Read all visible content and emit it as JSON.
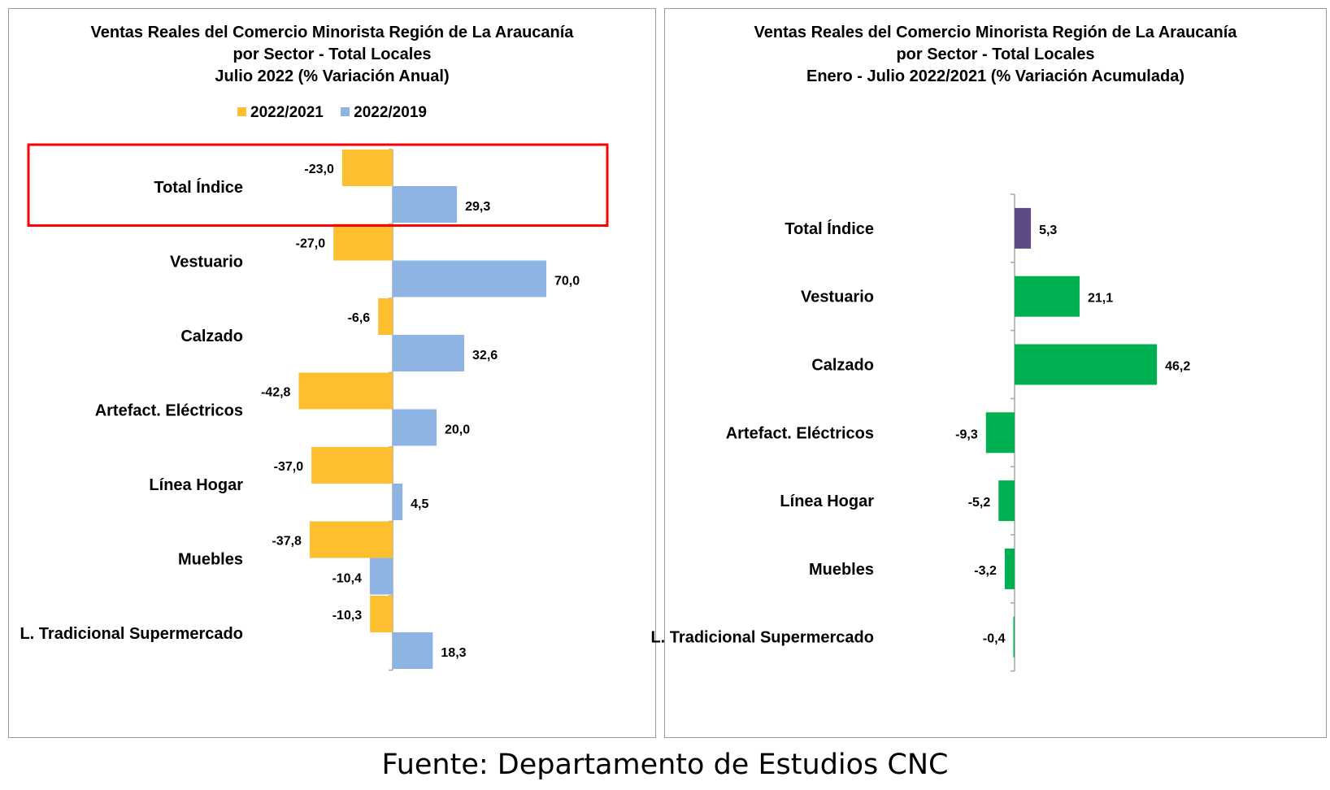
{
  "colors": {
    "series_2021": "#FDBF2D",
    "series_2019": "#8EB4E3",
    "total_index": "#5E4A85",
    "sectors": "#00B050",
    "highlight_box": "#FF0000"
  },
  "source": "Fuente: Departamento de Estudios CNC",
  "chart_data": [
    {
      "type": "bar",
      "orientation": "horizontal",
      "title_lines": [
        "Ventas Reales del Comercio Minorista  Región de La Araucanía",
        "por Sector  - Total Locales",
        "Julio 2022 (% Variación Anual)"
      ],
      "legend": {
        "placement": "top",
        "labels": [
          "2022/2021",
          "2022/2019"
        ]
      },
      "categories": [
        "Total Índice",
        "Vestuario",
        "Calzado",
        "Artefact. Eléctricos",
        "Línea Hogar",
        "Muebles",
        "L. Tradicional Supermercado"
      ],
      "series": [
        {
          "name": "2022/2021",
          "values": [
            -23.0,
            -27.0,
            -6.6,
            -42.8,
            -37.0,
            -37.8,
            -10.3
          ],
          "labels": [
            "-23,0",
            "-27,0",
            "-6,6",
            "-42,8",
            "-37,0",
            "-37,8",
            "-10,3"
          ]
        },
        {
          "name": "2022/2019",
          "values": [
            29.3,
            70.0,
            32.6,
            20.0,
            4.5,
            -10.4,
            18.3
          ],
          "labels": [
            "29,3",
            "70,0",
            "32,6",
            "20,0",
            "4,5",
            "-10,4",
            "18,3"
          ]
        }
      ],
      "highlighted_category": "Total Índice"
    },
    {
      "type": "bar",
      "orientation": "horizontal",
      "title_lines": [
        "Ventas Reales del Comercio Minorista Región de La Araucanía",
        "por Sector - Total Locales",
        "Enero - Julio 2022/2021 (% Variación Acumulada)"
      ],
      "categories": [
        "Total Índice",
        "Vestuario",
        "Calzado",
        "Artefact. Eléctricos",
        "Línea Hogar",
        "Muebles",
        "L. Tradicional Supermercado"
      ],
      "values": [
        5.3,
        21.1,
        46.2,
        -9.3,
        -5.2,
        -3.2,
        -0.4
      ],
      "labels": [
        "5,3",
        "21,1",
        "46,2",
        "-9,3",
        "-5,2",
        "-3,2",
        "-0,4"
      ]
    }
  ]
}
